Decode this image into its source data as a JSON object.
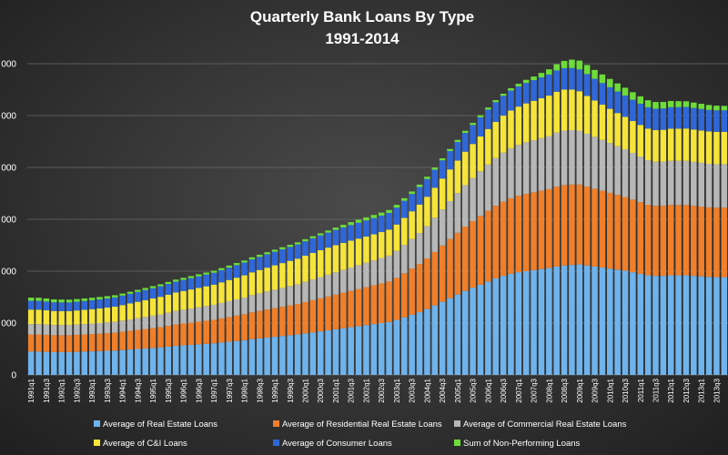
{
  "chart_data": {
    "type": "bar",
    "stacked": true,
    "title": "Quarterly Bank Loans By Type",
    "subtitle": "1991-2014",
    "xlabel": "",
    "ylabel": "",
    "ylim": [
      0,
      6000
    ],
    "y_ticks": [
      {
        "value": 0,
        "label": "0"
      },
      {
        "value": 1000,
        "label": "000"
      },
      {
        "value": 2000,
        "label": "000"
      },
      {
        "value": 3000,
        "label": "000"
      },
      {
        "value": 4000,
        "label": "000"
      },
      {
        "value": 5000,
        "label": "000"
      },
      {
        "value": 6000,
        "label": "000"
      }
    ],
    "grid": true,
    "legend_position": "bottom",
    "categories": [
      "1991q1",
      "1991q2",
      "1991q3",
      "1991q4",
      "1992q1",
      "1992q2",
      "1992q3",
      "1992q4",
      "1993q1",
      "1993q2",
      "1993q3",
      "1993q4",
      "1994q1",
      "1994q2",
      "1994q3",
      "1994q4",
      "1995q1",
      "1995q2",
      "1995q3",
      "1995q4",
      "1996q1",
      "1996q2",
      "1996q3",
      "1996q4",
      "1997q1",
      "1997q2",
      "1997q3",
      "1997q4",
      "1998q1",
      "1998q2",
      "1998q3",
      "1998q4",
      "1999q1",
      "1999q2",
      "1999q3",
      "1999q4",
      "2000q1",
      "2000q2",
      "2000q3",
      "2000q4",
      "2001q1",
      "2001q2",
      "2001q3",
      "2001q4",
      "2002q1",
      "2002q2",
      "2002q3",
      "2002q4",
      "2003q1",
      "2003q2",
      "2003q3",
      "2003q4",
      "2004q1",
      "2004q2",
      "2004q3",
      "2004q4",
      "2005q1",
      "2005q2",
      "2005q3",
      "2005q4",
      "2006q1",
      "2006q2",
      "2006q3",
      "2006q4",
      "2007q1",
      "2007q2",
      "2007q3",
      "2007q4",
      "2008q1",
      "2008q2",
      "2008q3",
      "2008q4",
      "2009q1",
      "2009q2",
      "2009q3",
      "2009q4",
      "2010q1",
      "2010q2",
      "2010q3",
      "2010q4",
      "2011q1",
      "2011q2",
      "2011q3",
      "2011q4",
      "2012q1",
      "2012q2",
      "2012q3",
      "2012q4",
      "2013q1",
      "2013q2",
      "2013q3",
      "2013q4"
    ],
    "x_tick_labels": [
      "1991q1",
      "1991q3",
      "1992q1",
      "1992q3",
      "1993q1",
      "1993q3",
      "1994q1",
      "1994q3",
      "1995q1",
      "1995q3",
      "1996q1",
      "1996q3",
      "1997q1",
      "1997q3",
      "1998q1",
      "1998q3",
      "1999q1",
      "1999q3",
      "2000q1",
      "2000q3",
      "2001q1",
      "2001q3",
      "2002q1",
      "2002q3",
      "2003q1",
      "2003q3",
      "2004q1",
      "2004q3",
      "2005q1",
      "2005q3",
      "2006q1",
      "2006q3",
      "2007q1",
      "2007q3",
      "2008q1",
      "2008q3",
      "2009q1",
      "2009q3",
      "2010q1",
      "2010q3",
      "2011q1",
      "2011q3",
      "2012q1",
      "2012q3",
      "2013q1",
      "2013q3"
    ],
    "series": [
      {
        "name": "Average of Real Estate Loans",
        "color": "#6fb3ec",
        "values": [
          450,
          450,
          445,
          440,
          440,
          440,
          445,
          450,
          455,
          460,
          465,
          470,
          480,
          490,
          500,
          510,
          520,
          530,
          545,
          560,
          570,
          580,
          590,
          600,
          610,
          625,
          640,
          655,
          670,
          690,
          705,
          720,
          735,
          750,
          765,
          780,
          800,
          820,
          840,
          860,
          880,
          900,
          920,
          940,
          960,
          980,
          1000,
          1020,
          1060,
          1110,
          1160,
          1210,
          1270,
          1340,
          1410,
          1480,
          1550,
          1620,
          1680,
          1740,
          1800,
          1860,
          1910,
          1950,
          1980,
          2000,
          2020,
          2040,
          2060,
          2090,
          2110,
          2120,
          2130,
          2110,
          2090,
          2070,
          2050,
          2030,
          2010,
          1980,
          1950,
          1920,
          1910,
          1910,
          1920,
          1920,
          1920,
          1910,
          1900,
          1890,
          1885,
          1885
        ]
      },
      {
        "name": "Average of Residential Real Estate Loans",
        "color": "#f07f2a",
        "values": [
          330,
          330,
          328,
          325,
          325,
          325,
          328,
          330,
          333,
          336,
          340,
          344,
          352,
          360,
          368,
          376,
          384,
          392,
          402,
          412,
          420,
          428,
          436,
          444,
          452,
          464,
          476,
          488,
          500,
          516,
          528,
          540,
          552,
          564,
          576,
          588,
          604,
          620,
          636,
          652,
          668,
          684,
          700,
          716,
          732,
          748,
          764,
          780,
          810,
          850,
          890,
          930,
          975,
          1030,
          1085,
          1140,
          1190,
          1240,
          1285,
          1325,
          1365,
          1400,
          1430,
          1455,
          1475,
          1490,
          1500,
          1510,
          1520,
          1540,
          1550,
          1550,
          1540,
          1520,
          1500,
          1480,
          1460,
          1440,
          1420,
          1400,
          1380,
          1360,
          1350,
          1350,
          1355,
          1355,
          1355,
          1350,
          1345,
          1340,
          1340,
          1340
        ]
      },
      {
        "name": "Average of Commercial Real Estate Loans",
        "color": "#b7b7b7",
        "values": [
          200,
          200,
          198,
          196,
          196,
          196,
          198,
          200,
          202,
          204,
          207,
          210,
          215,
          220,
          226,
          232,
          238,
          244,
          252,
          260,
          266,
          272,
          278,
          284,
          290,
          298,
          306,
          314,
          322,
          332,
          340,
          348,
          356,
          364,
          372,
          380,
          390,
          400,
          410,
          420,
          430,
          440,
          450,
          460,
          470,
          480,
          490,
          500,
          520,
          545,
          570,
          595,
          625,
          660,
          695,
          730,
          765,
          800,
          830,
          860,
          890,
          920,
          945,
          965,
          980,
          995,
          1005,
          1015,
          1025,
          1040,
          1050,
          1050,
          1040,
          1020,
          1000,
          980,
          960,
          940,
          920,
          900,
          880,
          860,
          850,
          850,
          852,
          852,
          852,
          848,
          844,
          840,
          838,
          838
        ]
      },
      {
        "name": "Average of C&I Loans",
        "color": "#f5e43a",
        "values": [
          280,
          278,
          275,
          272,
          270,
          270,
          272,
          275,
          278,
          282,
          287,
          292,
          300,
          308,
          316,
          324,
          332,
          340,
          348,
          356,
          362,
          368,
          374,
          380,
          388,
          398,
          408,
          418,
          428,
          440,
          450,
          460,
          470,
          478,
          486,
          494,
          504,
          512,
          518,
          522,
          524,
          522,
          518,
          512,
          506,
          502,
          500,
          502,
          510,
          522,
          535,
          550,
          565,
          580,
          596,
          612,
          628,
          644,
          658,
          672,
          686,
          700,
          714,
          726,
          738,
          750,
          760,
          770,
          780,
          790,
          790,
          780,
          760,
          730,
          700,
          680,
          660,
          640,
          625,
          615,
          610,
          610,
          612,
          616,
          620,
          622,
          624,
          624,
          624,
          624,
          624,
          624
        ]
      },
      {
        "name": "Average of Consumer Loans",
        "color": "#2f67d8",
        "values": [
          170,
          170,
          168,
          166,
          166,
          166,
          168,
          170,
          172,
          174,
          176,
          178,
          182,
          186,
          190,
          194,
          198,
          202,
          206,
          210,
          214,
          218,
          222,
          226,
          230,
          234,
          238,
          242,
          246,
          250,
          254,
          258,
          262,
          266,
          270,
          274,
          278,
          282,
          286,
          290,
          294,
          298,
          302,
          306,
          310,
          314,
          318,
          322,
          326,
          330,
          334,
          338,
          342,
          346,
          350,
          354,
          358,
          362,
          366,
          370,
          374,
          378,
          382,
          386,
          390,
          394,
          398,
          402,
          406,
          410,
          414,
          418,
          420,
          420,
          420,
          418,
          416,
          414,
          412,
          410,
          410,
          410,
          410,
          412,
          414,
          414,
          414,
          414,
          414,
          414,
          414,
          414
        ]
      },
      {
        "name": "Sum of Non-Performing Loans",
        "color": "#6ddc3a",
        "values": [
          60,
          60,
          60,
          58,
          56,
          54,
          52,
          50,
          48,
          46,
          44,
          42,
          40,
          40,
          40,
          40,
          40,
          40,
          40,
          40,
          40,
          40,
          40,
          40,
          40,
          40,
          40,
          40,
          40,
          40,
          40,
          40,
          40,
          40,
          40,
          40,
          40,
          40,
          40,
          40,
          45,
          50,
          55,
          58,
          60,
          60,
          58,
          55,
          52,
          50,
          48,
          46,
          44,
          42,
          40,
          40,
          40,
          40,
          40,
          40,
          40,
          40,
          40,
          45,
          50,
          60,
          70,
          85,
          100,
          120,
          140,
          160,
          170,
          175,
          170,
          165,
          160,
          155,
          150,
          145,
          140,
          135,
          130,
          125,
          120,
          115,
          110,
          105,
          100,
          95,
          90,
          85
        ]
      }
    ]
  }
}
